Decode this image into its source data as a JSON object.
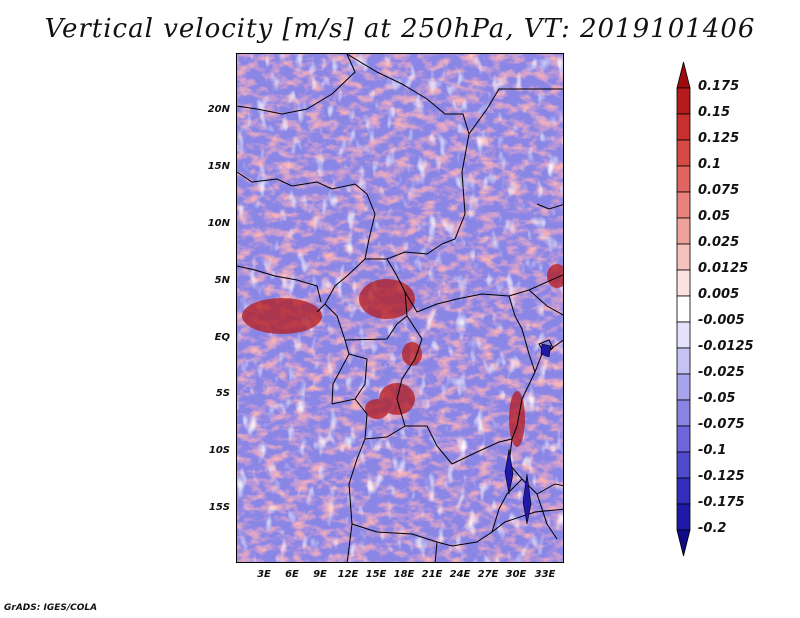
{
  "title": "Vertical velocity [m/s] at 250hPa, VT: 2019101406",
  "map": {
    "lat_labels": [
      "20N",
      "15N",
      "10N",
      "5N",
      "EQ",
      "5S",
      "10S",
      "15S"
    ],
    "lon_labels": [
      "3E",
      "6E",
      "9E",
      "12E",
      "15E",
      "18E",
      "21E",
      "24E",
      "27E",
      "30E",
      "33E"
    ]
  },
  "colorbar": {
    "levels": [
      "0.175",
      "0.15",
      "0.125",
      "0.1",
      "0.075",
      "0.05",
      "0.025",
      "0.0125",
      "0.005",
      "-0.005",
      "-0.0125",
      "-0.025",
      "-0.05",
      "-0.075",
      "-0.1",
      "-0.125",
      "-0.175",
      "-0.2"
    ],
    "colors": [
      "#9e0b0e",
      "#b51a1c",
      "#c8302e",
      "#d64a44",
      "#e06560",
      "#e8827c",
      "#efa19b",
      "#f5c2bd",
      "#fbe2df",
      "#ffffff",
      "#e4e2fb",
      "#c6c3f4",
      "#a7a3ec",
      "#8984e3",
      "#6c66d9",
      "#4f49cc",
      "#332dbb",
      "#1f19a6",
      "#100b86"
    ]
  },
  "credit": "GrADS: IGES/COLA"
}
